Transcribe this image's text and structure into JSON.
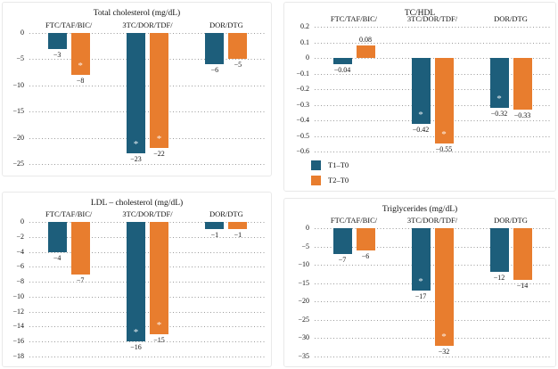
{
  "palette": {
    "t1_color": "#1d5e7b",
    "t2_color": "#e87d2e",
    "grid_color": "#9b9b9b",
    "text_color": "#141414",
    "panel_border": "#e9e9e9",
    "significance_marker": "*"
  },
  "legend": {
    "position": "bottom-left of TC/HDL panel",
    "items": [
      {
        "label": "T1–T0",
        "series": "T1"
      },
      {
        "label": "T2–T0",
        "series": "T2"
      }
    ]
  },
  "chart_data": [
    {
      "id": "total-cholesterol",
      "type": "bar",
      "title": "Total cholesterol (mg/dL)",
      "categories": [
        "FTC/TAF/BIC/",
        "3TC/DOR/TDF/",
        "DOR/DTG"
      ],
      "series": [
        {
          "name": "T1–T0",
          "values": [
            -3,
            -23,
            -6
          ],
          "labels": [
            "−3",
            "−23",
            "−6"
          ],
          "significant": [
            false,
            true,
            false
          ]
        },
        {
          "name": "T2–T0",
          "values": [
            -8,
            -22,
            -5
          ],
          "labels": [
            "−8",
            "−22",
            "−5"
          ],
          "significant": [
            true,
            true,
            false
          ]
        }
      ],
      "ylim": [
        -25,
        0
      ],
      "ytick_step": 5,
      "yticks": [
        "0",
        "−5",
        "−10",
        "−15",
        "−20",
        "−25"
      ],
      "grid": "dotted horizontal"
    },
    {
      "id": "tc-hdl",
      "type": "bar",
      "title": "TC/HDL",
      "categories": [
        "FTC/TAF/BIC/",
        "3TC/DOR/TDF/",
        "DOR/DTG"
      ],
      "series": [
        {
          "name": "T1–T0",
          "values": [
            -0.04,
            -0.42,
            -0.32
          ],
          "labels": [
            "−0.04",
            "−0.42",
            "−0.32"
          ],
          "significant": [
            false,
            true,
            true
          ]
        },
        {
          "name": "T2–T0",
          "values": [
            0.08,
            -0.55,
            -0.33
          ],
          "labels": [
            "0.08",
            "−0.55",
            "−0.33"
          ],
          "significant": [
            false,
            true,
            false
          ]
        }
      ],
      "ylim": [
        -0.6,
        0.2
      ],
      "ytick_step": 0.1,
      "yticks": [
        "0.2",
        "0.1",
        "0",
        "−0.1",
        "−0.2",
        "−0.3",
        "−0.4",
        "−0.5",
        "−0.6"
      ],
      "grid": "dotted horizontal"
    },
    {
      "id": "ldl-cholesterol",
      "type": "bar",
      "title": "LDL – cholesterol (mg/dL)",
      "categories": [
        "FTC/TAF/BIC/",
        "3TC/DOR/TDF/",
        "DOR/DTG"
      ],
      "series": [
        {
          "name": "T1–T0",
          "values": [
            -4,
            -16,
            -1
          ],
          "labels": [
            "−4",
            "−16",
            "−1"
          ],
          "significant": [
            false,
            true,
            false
          ]
        },
        {
          "name": "T2–T0",
          "values": [
            -7,
            -15,
            -1
          ],
          "labels": [
            "−7",
            "−15",
            "−1"
          ],
          "significant": [
            false,
            true,
            false
          ]
        }
      ],
      "ylim": [
        -18,
        0
      ],
      "ytick_step": 2,
      "yticks": [
        "0",
        "−2",
        "−4",
        "−6",
        "−8",
        "−10",
        "−12",
        "−14",
        "−16",
        "−18"
      ],
      "grid": "dotted horizontal"
    },
    {
      "id": "triglycerides",
      "type": "bar",
      "title": "Triglycerides (mg/dL)",
      "categories": [
        "FTC/TAF/BIC/",
        "3TC/DOR/TDF/",
        "DOR/DTG"
      ],
      "series": [
        {
          "name": "T1–T0",
          "values": [
            -7,
            -17,
            -12
          ],
          "labels": [
            "−7",
            "−17",
            "−12"
          ],
          "significant": [
            false,
            true,
            false
          ]
        },
        {
          "name": "T2–T0",
          "values": [
            -6,
            -32,
            -14
          ],
          "labels": [
            "−6",
            "−32",
            "−14"
          ],
          "significant": [
            false,
            true,
            false
          ]
        }
      ],
      "ylim": [
        -35,
        0
      ],
      "ytick_step": 5,
      "yticks": [
        "0",
        "−5",
        "−10",
        "−15",
        "−20",
        "−25",
        "−30",
        "−35"
      ],
      "grid": "dotted horizontal"
    }
  ]
}
